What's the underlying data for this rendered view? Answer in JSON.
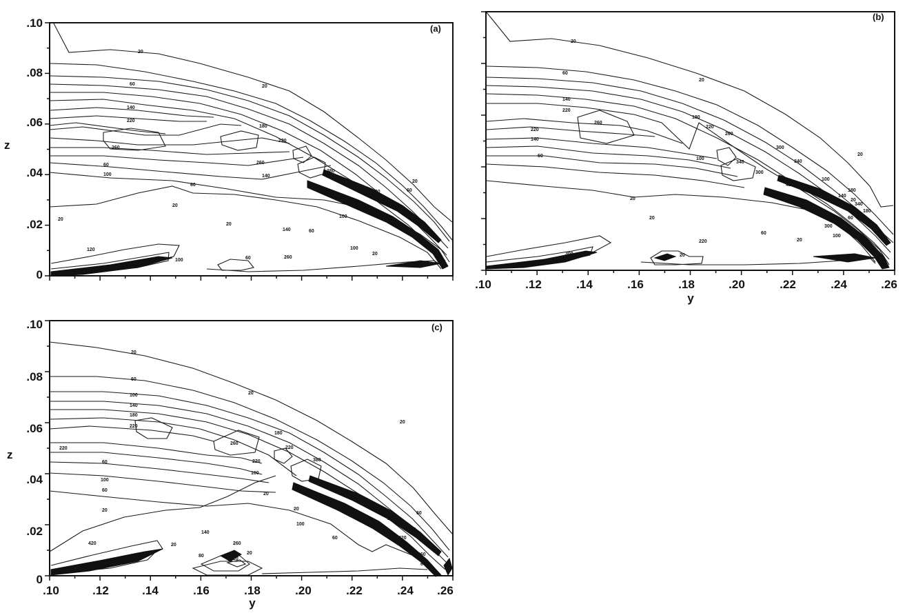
{
  "chart_data": [
    {
      "type": "contour",
      "panel": "(a)",
      "xlabel": "",
      "ylabel": "z",
      "xlim": [
        0.1,
        0.26
      ],
      "ylim": [
        0,
        0.1
      ],
      "x_ticks": [],
      "y_ticks": [
        ".10",
        ".08",
        ".06",
        ".04",
        ".02",
        "0"
      ],
      "contour_labels": [
        "20",
        "60",
        "20",
        "140",
        "220",
        "180",
        "260",
        "220",
        "60",
        "100",
        "260",
        "140",
        "60",
        "20",
        "380",
        "60",
        "300",
        "420",
        "100",
        "20",
        "20",
        "20",
        "140",
        "60",
        "100",
        "20",
        "120",
        "340",
        "60",
        "260",
        "100"
      ]
    },
    {
      "type": "contour",
      "panel": "(b)",
      "xlabel": "y",
      "ylabel": "",
      "xlim": [
        0.1,
        0.26
      ],
      "ylim": [
        0,
        0.1
      ],
      "x_ticks": [
        ".10",
        ".12",
        ".14",
        ".16",
        ".18",
        ".20",
        ".22",
        ".24",
        ".26"
      ],
      "y_ticks": [],
      "contour_labels": [
        "20",
        "60",
        "20",
        "140",
        "220",
        "260",
        "180",
        "220",
        "220",
        "260",
        "140",
        "300",
        "100",
        "60",
        "340",
        "300",
        "20",
        "340",
        "420",
        "100",
        "180",
        "20",
        "140",
        "20",
        "180",
        "60",
        "100",
        "20",
        "60",
        "300",
        "100",
        "20",
        "220",
        "20",
        "300",
        "340"
      ]
    },
    {
      "type": "contour",
      "panel": "(c)",
      "xlabel": "y",
      "ylabel": "z",
      "xlim": [
        0.1,
        0.26
      ],
      "ylim": [
        0,
        0.1
      ],
      "x_ticks": [
        ".10",
        ".12",
        ".14",
        ".16",
        ".18",
        ".20",
        ".22",
        ".24",
        ".26"
      ],
      "y_ticks": [
        ".10",
        ".08",
        ".06",
        ".04",
        ".02",
        "0"
      ],
      "contour_labels": [
        "20",
        "60",
        "100",
        "140",
        "180",
        "220",
        "220",
        "60",
        "100",
        "60",
        "20",
        "20",
        "260",
        "220",
        "220",
        "100",
        "180",
        "380",
        "20",
        "20",
        "20",
        "100",
        "260",
        "60",
        "420",
        "140",
        "60",
        "140",
        "260",
        "80",
        "20",
        "20",
        "20",
        "260",
        "420",
        "60",
        "340"
      ]
    }
  ]
}
